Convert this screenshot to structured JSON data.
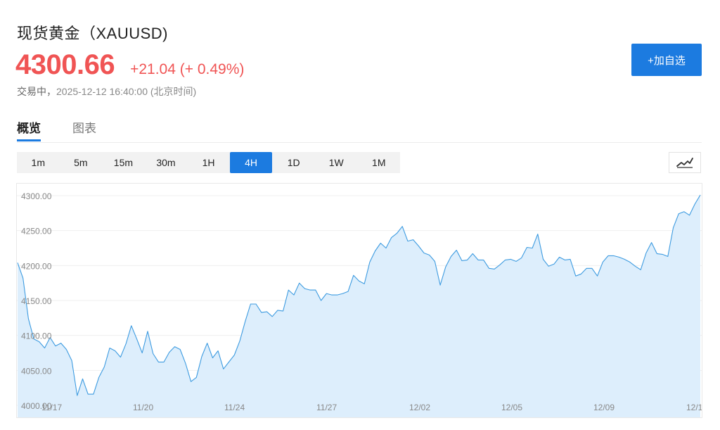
{
  "header": {
    "title": "现货黄金（XAUUSD)",
    "price": "4300.66",
    "change": "+21.04 (+ 0.49%)",
    "status_label": "交易中，",
    "timestamp": "2025-12-12 16:40:00 (北京时间)",
    "add_watchlist_label": "+加自选"
  },
  "tabs": [
    {
      "label": "概览",
      "active": true
    },
    {
      "label": "图表",
      "active": false
    }
  ],
  "timeframes": [
    {
      "label": "1m",
      "active": false
    },
    {
      "label": "5m",
      "active": false
    },
    {
      "label": "15m",
      "active": false
    },
    {
      "label": "30m",
      "active": false
    },
    {
      "label": "1H",
      "active": false
    },
    {
      "label": "4H",
      "active": true
    },
    {
      "label": "1D",
      "active": false
    },
    {
      "label": "1W",
      "active": false
    },
    {
      "label": "1M",
      "active": false
    }
  ],
  "chart_type_icon": "line-chart-icon",
  "colors": {
    "accent": "#1c7be0",
    "up": "#f05454",
    "line": "#3d9be0",
    "area": "#ddeefc"
  },
  "chart_data": {
    "type": "area",
    "title": "",
    "xlabel": "",
    "ylabel": "",
    "ylim": [
      4000,
      4305
    ],
    "y_ticks": [
      "4000.00",
      "4050.00",
      "4100.00",
      "4150.00",
      "4200.00",
      "4250.00",
      "4300.00"
    ],
    "x_tick_labels": [
      "11/17",
      "11/20",
      "11/24",
      "11/27",
      "12/02",
      "12/05",
      "12/09",
      "12/1"
    ],
    "grid": true,
    "series": [
      {
        "values": [
          4204,
          4182,
          4124,
          4095,
          4091,
          4082,
          4097,
          4085,
          4089,
          4080,
          4064,
          4014,
          4038,
          4016,
          4016,
          4040,
          4055,
          4082,
          4078,
          4069,
          4088,
          4114,
          4095,
          4075,
          4106,
          4074,
          4062,
          4062,
          4076,
          4084,
          4080,
          4060,
          4034,
          4040,
          4070,
          4089,
          4068,
          4078,
          4052,
          4062,
          4072,
          4092,
          4120,
          4145,
          4145,
          4133,
          4134,
          4127,
          4136,
          4135,
          4165,
          4158,
          4175,
          4167,
          4165,
          4165,
          4150,
          4160,
          4158,
          4158,
          4160,
          4163,
          4186,
          4178,
          4174,
          4205,
          4221,
          4232,
          4225,
          4240,
          4246,
          4256,
          4235,
          4237,
          4228,
          4218,
          4215,
          4206,
          4172,
          4198,
          4213,
          4222,
          4207,
          4208,
          4217,
          4208,
          4208,
          4196,
          4195,
          4201,
          4208,
          4209,
          4206,
          4211,
          4226,
          4225,
          4245,
          4209,
          4199,
          4202,
          4212,
          4208,
          4209,
          4185,
          4188,
          4196,
          4196,
          4185,
          4205,
          4214,
          4214,
          4212,
          4209,
          4205,
          4199,
          4194,
          4218,
          4233,
          4217,
          4216,
          4213,
          4254,
          4274,
          4277,
          4272,
          4288,
          4301
        ]
      }
    ]
  }
}
